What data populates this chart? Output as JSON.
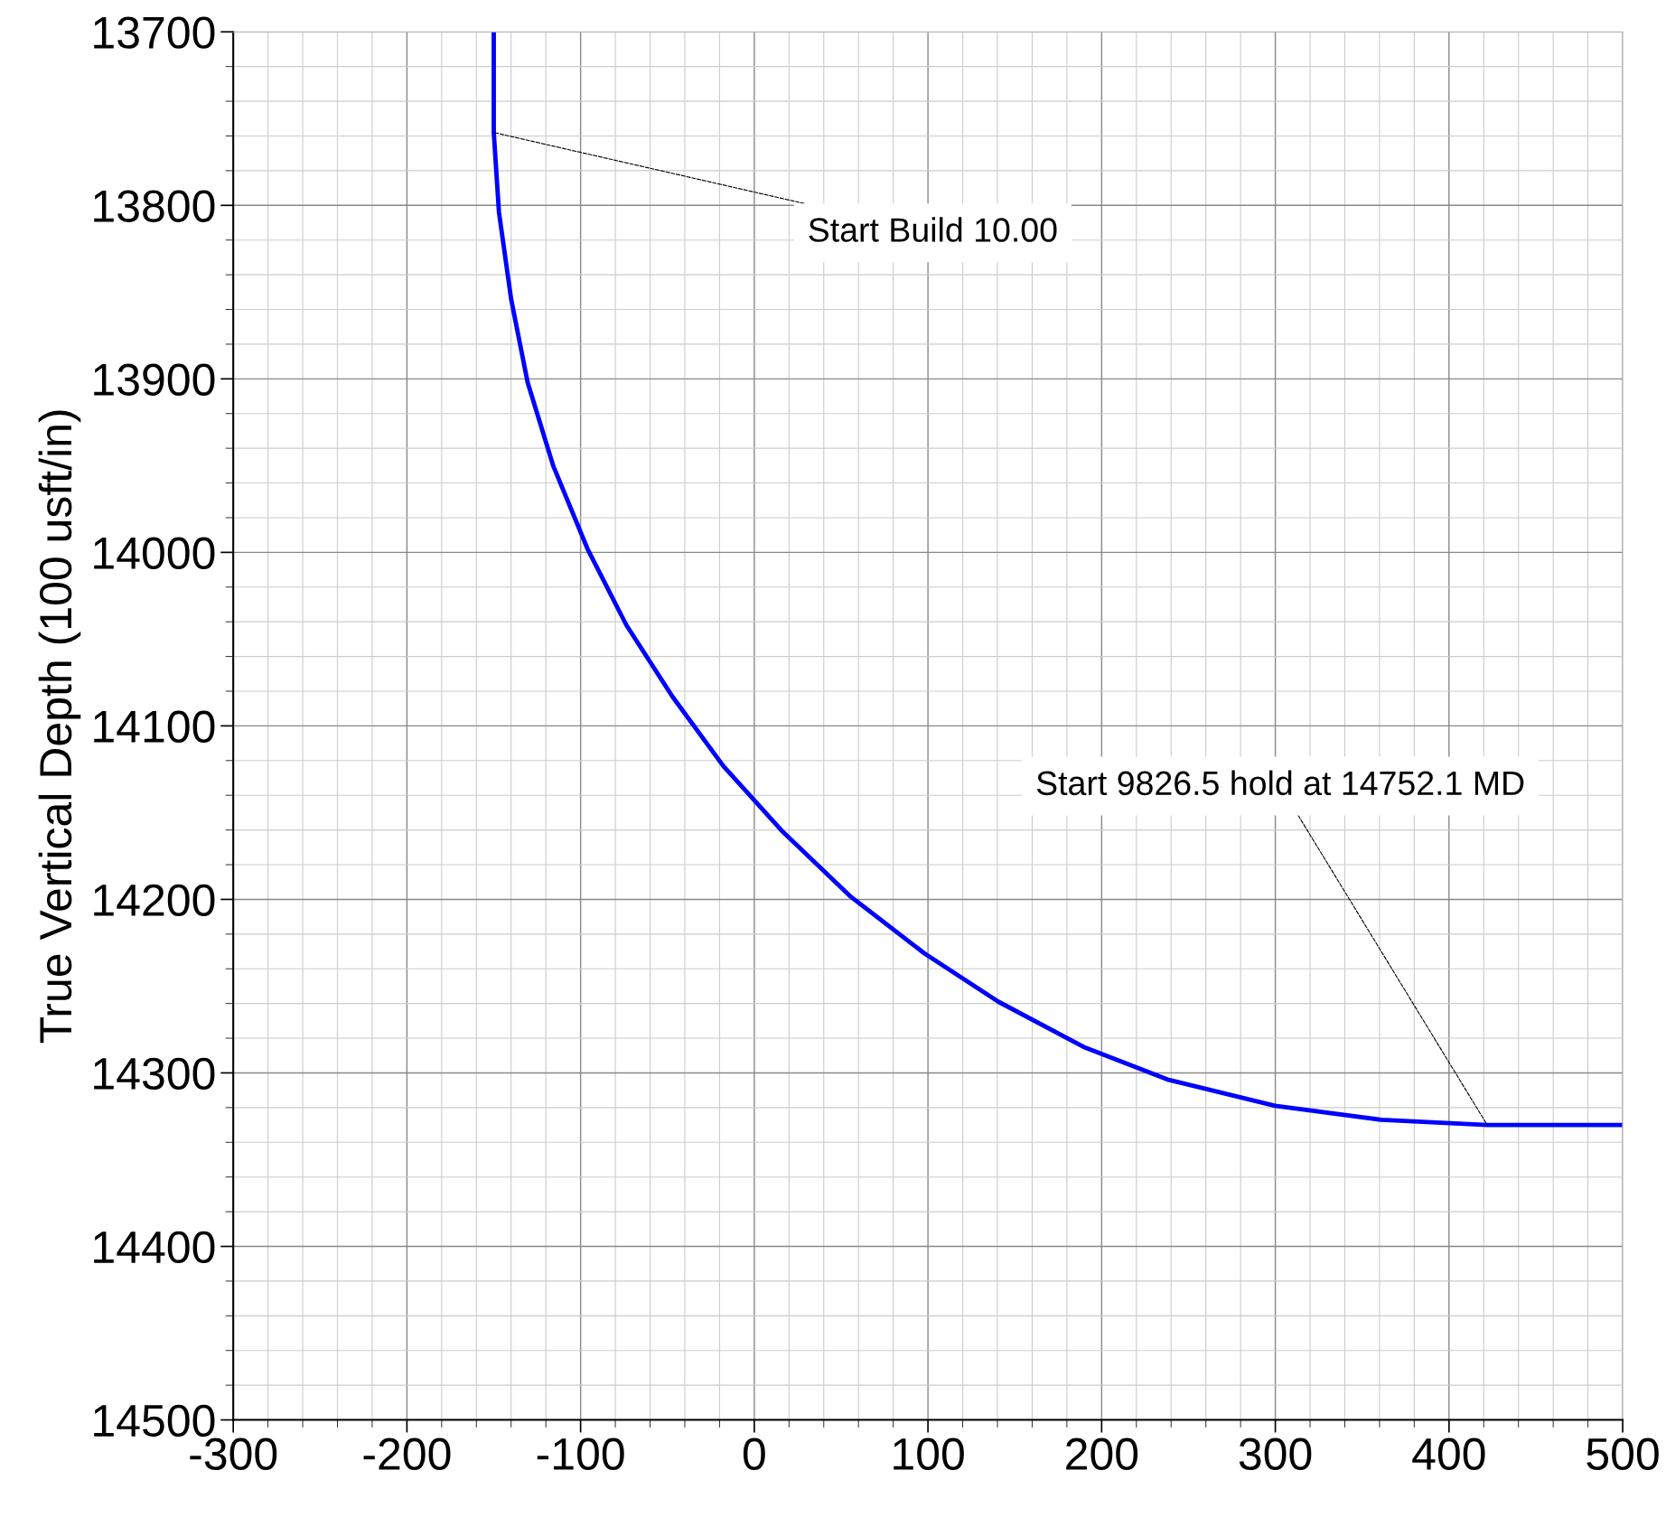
{
  "chart_data": {
    "type": "line",
    "ylabel": "True Vertical Depth (100 usft/in)",
    "x": [
      -150,
      -150,
      -147,
      -140,
      -130.5,
      -115.8,
      -96,
      -73.6,
      -47.2,
      -17.9,
      16.4,
      55,
      97.8,
      140.6,
      189.6,
      238.6,
      299.8,
      361,
      422,
      500
    ],
    "series": [
      {
        "color": "#0000ff",
        "values": [
          13700,
          13758,
          13804,
          13854,
          13902,
          13950,
          13998,
          14042,
          14083,
          14123,
          14161,
          14198,
          14231,
          14259,
          14285,
          14304,
          14319,
          14327,
          14330,
          14330
        ]
      }
    ],
    "xlim": [
      -300,
      500
    ],
    "xticks": [
      -300,
      -200,
      -100,
      0,
      100,
      200,
      300,
      400,
      500
    ],
    "ylim": [
      14500,
      13700
    ],
    "yticks": [
      13700,
      13800,
      13900,
      14000,
      14100,
      14200,
      14300,
      14400,
      14500
    ],
    "grid": true,
    "marker": "none",
    "line_style": "solid",
    "annotations": [
      {
        "text": "Start Build 10.00",
        "x": -150,
        "y": 13758
      },
      {
        "text": "Start 9826.5 hold at 14752.1 MD",
        "x": 422,
        "y": 14330
      }
    ]
  }
}
